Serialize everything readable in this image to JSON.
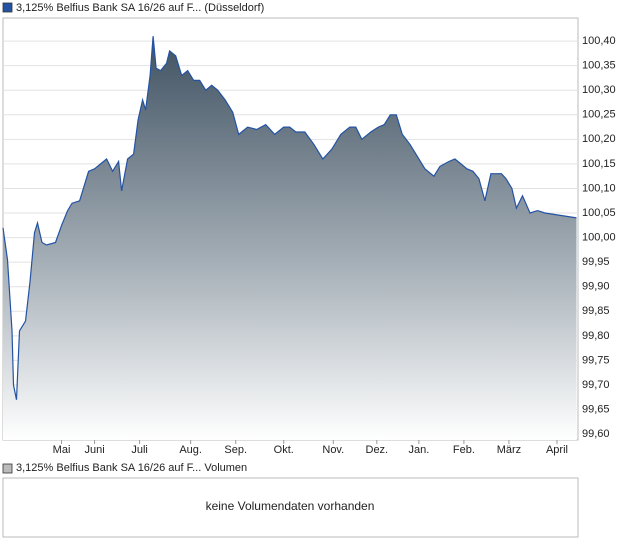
{
  "chart_data": {
    "type": "area",
    "series": [
      {
        "name": "3,125% Belfius Bank SA 16/26 auf F... (Düsseldorf)",
        "color": "#2453a3",
        "x": [
          0,
          3,
          6,
          7,
          9,
          11,
          15,
          18,
          21,
          23,
          26,
          29,
          35,
          39,
          43,
          46,
          51,
          57,
          61,
          65,
          69,
          73,
          77,
          79,
          83,
          87,
          90,
          93,
          95,
          98,
          100,
          102,
          105,
          109,
          111,
          115,
          119,
          123,
          127,
          131,
          135,
          139,
          143,
          148,
          153,
          157,
          163,
          169,
          175,
          181,
          187,
          191,
          195,
          201,
          207,
          213,
          219,
          225,
          231,
          235,
          239,
          245,
          250,
          254,
          258,
          262,
          266,
          271,
          275,
          281,
          287,
          291,
          297,
          301,
          305,
          309,
          313,
          317,
          321,
          325,
          329,
          332,
          335,
          339,
          342,
          346,
          351,
          356,
          361,
          382
        ],
        "values": [
          100.02,
          99.955,
          99.81,
          99.7,
          99.67,
          99.81,
          99.83,
          99.91,
          100.01,
          100.03,
          99.99,
          99.985,
          99.99,
          100.025,
          100.055,
          100.07,
          100.075,
          100.135,
          100.14,
          100.15,
          100.16,
          100.135,
          100.155,
          100.095,
          100.16,
          100.17,
          100.24,
          100.28,
          100.26,
          100.33,
          100.41,
          100.345,
          100.34,
          100.355,
          100.38,
          100.37,
          100.33,
          100.34,
          100.32,
          100.32,
          100.3,
          100.31,
          100.3,
          100.28,
          100.255,
          100.21,
          100.225,
          100.22,
          100.23,
          100.21,
          100.225,
          100.225,
          100.215,
          100.215,
          100.19,
          100.16,
          100.18,
          100.21,
          100.225,
          100.225,
          100.2,
          100.215,
          100.225,
          100.23,
          100.25,
          100.25,
          100.21,
          100.19,
          100.17,
          100.14,
          100.125,
          100.145,
          100.155,
          100.16,
          100.15,
          100.14,
          100.135,
          100.12,
          100.075,
          100.13,
          100.13,
          100.13,
          100.12,
          100.1,
          100.06,
          100.085,
          100.05,
          100.055,
          100.05,
          100.04
        ]
      }
    ],
    "xlim": [
      0,
      383
    ],
    "xticks": [
      {
        "value": 39,
        "label": "Mai"
      },
      {
        "value": 61,
        "label": "Juni"
      },
      {
        "value": 91,
        "label": "Juli"
      },
      {
        "value": 125,
        "label": "Aug."
      },
      {
        "value": 155,
        "label": "Sep."
      },
      {
        "value": 187,
        "label": "Okt."
      },
      {
        "value": 220,
        "label": "Nov."
      },
      {
        "value": 249,
        "label": "Dez."
      },
      {
        "value": 277,
        "label": "Jan."
      },
      {
        "value": 307,
        "label": "Feb."
      },
      {
        "value": 337,
        "label": "März"
      },
      {
        "value": 369,
        "label": "April"
      }
    ],
    "ylim": [
      99.588,
      100.447
    ],
    "yticks": [
      {
        "value": 99.6,
        "label": "99,60"
      },
      {
        "value": 99.65,
        "label": "99,65"
      },
      {
        "value": 99.7,
        "label": "99,70"
      },
      {
        "value": 99.75,
        "label": "99,75"
      },
      {
        "value": 99.8,
        "label": "99,80"
      },
      {
        "value": 99.85,
        "label": "99,85"
      },
      {
        "value": 99.9,
        "label": "99,90"
      },
      {
        "value": 99.95,
        "label": "99,95"
      },
      {
        "value": 100.0,
        "label": "100,00"
      },
      {
        "value": 100.05,
        "label": "100,05"
      },
      {
        "value": 100.1,
        "label": "100,10"
      },
      {
        "value": 100.15,
        "label": "100,15"
      },
      {
        "value": 100.2,
        "label": "100,20"
      },
      {
        "value": 100.25,
        "label": "100,25"
      },
      {
        "value": 100.3,
        "label": "100,30"
      },
      {
        "value": 100.35,
        "label": "100,35"
      },
      {
        "value": 100.4,
        "label": "100,40"
      }
    ],
    "grid": true,
    "volume": {
      "legend": "3,125% Belfius Bank SA 16/26 auf F... Volumen",
      "message": "keine Volumendaten vorhanden"
    }
  }
}
